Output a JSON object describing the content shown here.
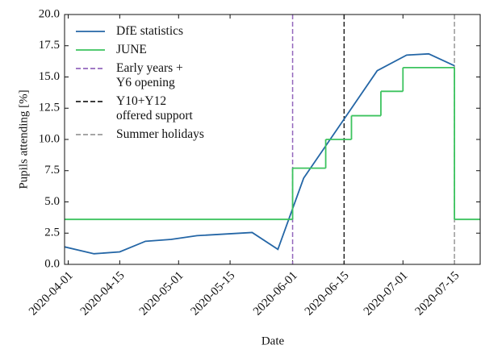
{
  "chart_data": {
    "type": "line",
    "x_label": "Date",
    "y_label": "Pupils attending [%]",
    "xlim": [
      "2020-03-31",
      "2020-07-22"
    ],
    "xticks": [
      "2020-04-01",
      "2020-04-15",
      "2020-05-01",
      "2020-05-15",
      "2020-06-01",
      "2020-06-15",
      "2020-07-01",
      "2020-07-15"
    ],
    "ylim": [
      0,
      20
    ],
    "yticks": [
      {
        "value": 0,
        "label": "0.0"
      },
      {
        "value": 2.5,
        "label": "2.5"
      },
      {
        "value": 5,
        "label": "5.0"
      },
      {
        "value": 7.5,
        "label": "7.5"
      },
      {
        "value": 10,
        "label": "10.0"
      },
      {
        "value": 12.5,
        "label": "12.5"
      },
      {
        "value": 15,
        "label": "15.0"
      },
      {
        "value": 17.5,
        "label": "17.5"
      },
      {
        "value": 20,
        "label": "20.0"
      }
    ],
    "grid": false,
    "series": [
      {
        "name": "DfE statistics",
        "color": "#2466a6",
        "drawstyle": "default",
        "x": [
          "2020-03-31",
          "2020-04-08",
          "2020-04-15",
          "2020-04-22",
          "2020-04-29",
          "2020-05-06",
          "2020-05-21",
          "2020-05-28",
          "2020-06-04",
          "2020-06-24",
          "2020-07-02",
          "2020-07-08",
          "2020-07-15"
        ],
        "values": [
          1.4,
          0.85,
          1.0,
          1.85,
          2.0,
          2.3,
          2.55,
          1.2,
          6.9,
          15.5,
          16.75,
          16.85,
          15.9
        ]
      },
      {
        "name": "JUNE",
        "color": "#3cc35e",
        "drawstyle": "steps-post",
        "x": [
          "2020-03-31",
          "2020-06-01",
          "2020-06-10",
          "2020-06-17",
          "2020-06-25",
          "2020-07-01",
          "2020-07-15",
          "2020-07-22"
        ],
        "values": [
          3.6,
          7.7,
          10.0,
          11.9,
          13.85,
          15.75,
          3.6,
          3.6
        ]
      }
    ],
    "vlines": [
      {
        "name": "Early years +\nY6 opening",
        "color": "#9467bd",
        "x": "2020-06-01"
      },
      {
        "name": "Y10+Y12\noffered support",
        "color": "#222222",
        "x": "2020-06-15"
      },
      {
        "name": "Summer holidays",
        "color": "#999999",
        "x": "2020-07-15"
      }
    ]
  }
}
